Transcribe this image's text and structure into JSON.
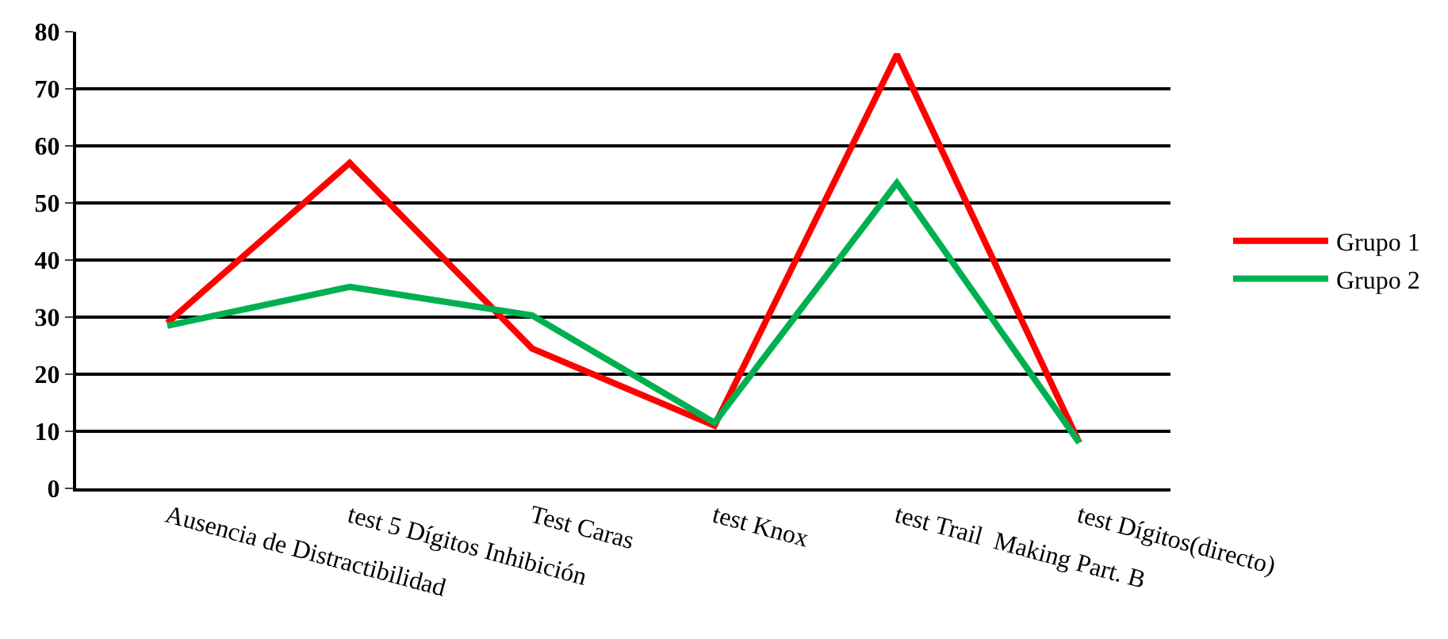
{
  "chart_data": {
    "type": "line",
    "categories": [
      "Ausencia de Distractibilidad",
      "test 5 Dígitos Inhibición",
      "Test Caras",
      "test Knox",
      "test Trail  Making Part. B",
      "test Dígitos(directo)"
    ],
    "series": [
      {
        "name": "Grupo 1",
        "color": "#ff0000",
        "values": [
          29,
          57,
          24.5,
          11,
          76,
          8
        ]
      },
      {
        "name": "Grupo 2",
        "color": "#00b050",
        "values": [
          28.5,
          35.3,
          30.3,
          11.5,
          53.5,
          8
        ]
      }
    ],
    "ylim": [
      0,
      80
    ],
    "yticks": [
      0,
      10,
      20,
      30,
      40,
      50,
      60,
      70,
      80
    ],
    "grid": "y",
    "legend": "right",
    "marker": "none",
    "line_style": "solid"
  }
}
